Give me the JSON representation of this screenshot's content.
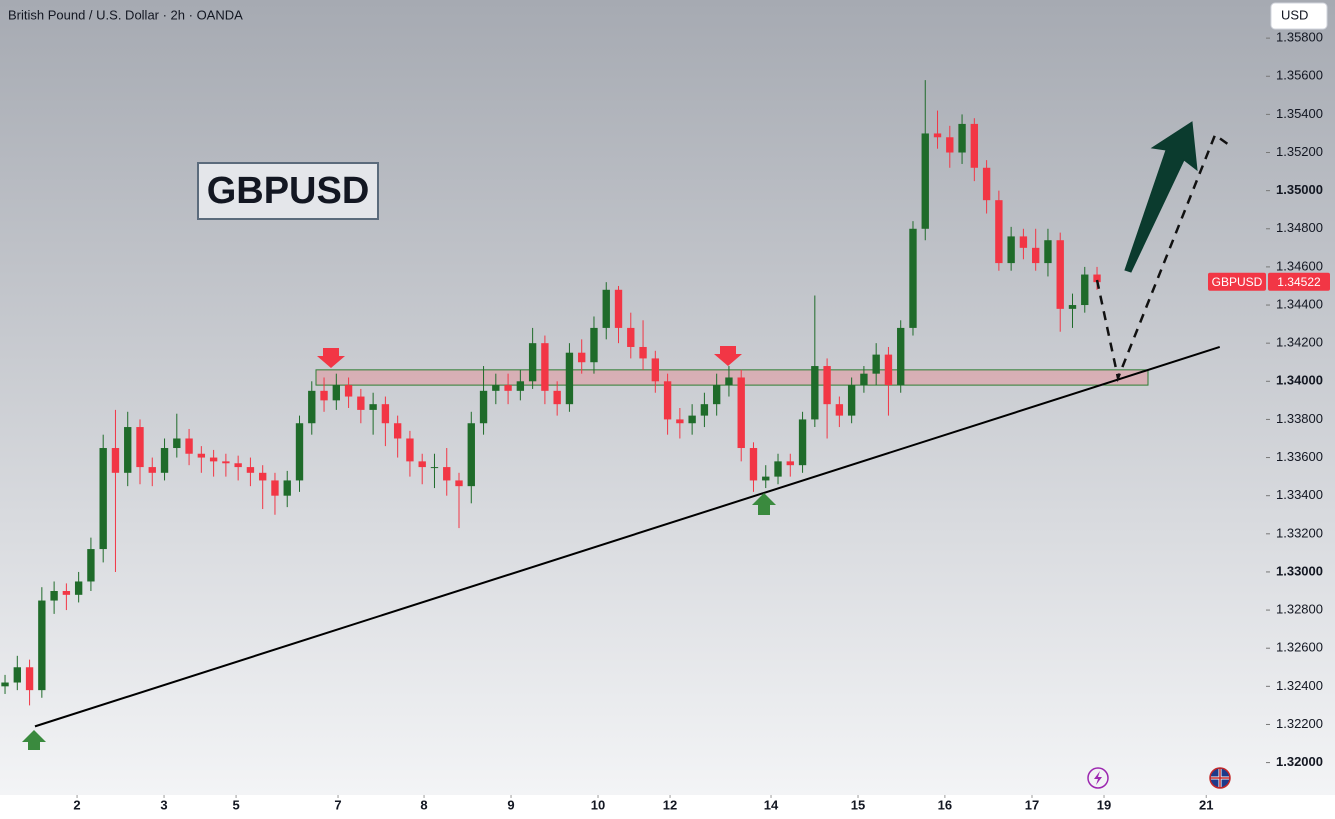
{
  "header": {
    "title": "British Pound / U.S. Dollar · 2h · OANDA",
    "currency": "USD"
  },
  "chart_data": {
    "type": "candlestick",
    "symbol_label": "GBPUSD",
    "open": [
      1.324,
      1.3242,
      1.325,
      1.3238,
      1.3285,
      1.329,
      1.3288,
      1.3295,
      1.3312,
      1.3365,
      1.3352,
      1.3376,
      1.3355,
      1.3352,
      1.3365,
      1.337,
      1.3362,
      1.336,
      1.3358,
      1.3357,
      1.3355,
      1.3352,
      1.3348,
      1.334,
      1.3348,
      1.3378,
      1.3395,
      1.339,
      1.3398,
      1.3392,
      1.3385,
      1.3388,
      1.3378,
      1.337,
      1.3358,
      1.3355,
      1.3355,
      1.3348,
      1.3345,
      1.3378,
      1.3395,
      1.3398,
      1.3395,
      1.34,
      1.342,
      1.3395,
      1.3388,
      1.3415,
      1.341,
      1.3428,
      1.3448,
      1.3428,
      1.3418,
      1.3412,
      1.34,
      1.338,
      1.3378,
      1.3382,
      1.3388,
      1.3398,
      1.3402,
      1.3365,
      1.3348,
      1.335,
      1.3358,
      1.3356,
      1.338,
      1.3408,
      1.3388,
      1.3382,
      1.3398,
      1.3404,
      1.3414,
      1.3398,
      1.3428,
      1.348,
      1.353,
      1.3528,
      1.352,
      1.3535,
      1.3512,
      1.3495,
      1.3462,
      1.3476,
      1.347,
      1.3462,
      1.3474,
      1.3438,
      1.344,
      1.3456
    ],
    "high": [
      1.3246,
      1.3256,
      1.3254,
      1.3292,
      1.3295,
      1.3294,
      1.33,
      1.3318,
      1.3372,
      1.3385,
      1.3384,
      1.338,
      1.336,
      1.337,
      1.3383,
      1.3375,
      1.3366,
      1.3364,
      1.3362,
      1.3361,
      1.336,
      1.3356,
      1.3352,
      1.3353,
      1.3382,
      1.34,
      1.3402,
      1.3404,
      1.3402,
      1.3396,
      1.3394,
      1.3392,
      1.3382,
      1.3374,
      1.3362,
      1.3362,
      1.3365,
      1.3352,
      1.3384,
      1.3408,
      1.3404,
      1.3404,
      1.3406,
      1.3428,
      1.3424,
      1.34,
      1.342,
      1.3422,
      1.3434,
      1.3452,
      1.345,
      1.3436,
      1.3432,
      1.3416,
      1.3404,
      1.3386,
      1.3388,
      1.3394,
      1.3404,
      1.3408,
      1.3406,
      1.3368,
      1.3356,
      1.3362,
      1.3362,
      1.3384,
      1.3445,
      1.3412,
      1.3392,
      1.3402,
      1.3408,
      1.342,
      1.3418,
      1.3432,
      1.3484,
      1.3558,
      1.3542,
      1.3534,
      1.354,
      1.3538,
      1.3516,
      1.35,
      1.3481,
      1.348,
      1.348,
      1.348,
      1.3478,
      1.3446,
      1.346,
      1.346
    ],
    "low": [
      1.3236,
      1.3238,
      1.323,
      1.3234,
      1.3278,
      1.328,
      1.3284,
      1.329,
      1.3305,
      1.33,
      1.3345,
      1.3346,
      1.3345,
      1.3348,
      1.336,
      1.3356,
      1.3352,
      1.335,
      1.335,
      1.3348,
      1.3345,
      1.3333,
      1.333,
      1.3334,
      1.3342,
      1.3372,
      1.3384,
      1.3385,
      1.3386,
      1.3378,
      1.3372,
      1.3366,
      1.336,
      1.335,
      1.3346,
      1.3344,
      1.334,
      1.3323,
      1.3336,
      1.3372,
      1.3388,
      1.3388,
      1.339,
      1.3396,
      1.3388,
      1.3382,
      1.3384,
      1.3404,
      1.3404,
      1.3422,
      1.342,
      1.3412,
      1.3406,
      1.3394,
      1.3372,
      1.337,
      1.3372,
      1.3376,
      1.3382,
      1.3392,
      1.3358,
      1.3342,
      1.3344,
      1.3346,
      1.335,
      1.3352,
      1.3376,
      1.337,
      1.3376,
      1.3378,
      1.3394,
      1.3398,
      1.3382,
      1.3394,
      1.3424,
      1.3474,
      1.3522,
      1.3512,
      1.3514,
      1.3505,
      1.3488,
      1.3458,
      1.3458,
      1.3464,
      1.3458,
      1.3455,
      1.3426,
      1.3428,
      1.3436,
      1.3448
    ],
    "close": [
      1.3242,
      1.325,
      1.3238,
      1.3285,
      1.329,
      1.3288,
      1.3295,
      1.3312,
      1.3365,
      1.3352,
      1.3376,
      1.3355,
      1.3352,
      1.3365,
      1.337,
      1.3362,
      1.336,
      1.3358,
      1.3357,
      1.3355,
      1.3352,
      1.3348,
      1.334,
      1.3348,
      1.3378,
      1.3395,
      1.339,
      1.3398,
      1.3392,
      1.3385,
      1.3388,
      1.3378,
      1.337,
      1.3358,
      1.3355,
      1.3355,
      1.3348,
      1.3345,
      1.3378,
      1.3395,
      1.3398,
      1.3395,
      1.34,
      1.342,
      1.3395,
      1.3388,
      1.3415,
      1.341,
      1.3428,
      1.3448,
      1.3428,
      1.3418,
      1.3412,
      1.34,
      1.338,
      1.3378,
      1.3382,
      1.3388,
      1.3398,
      1.3402,
      1.3365,
      1.3348,
      1.335,
      1.3358,
      1.3356,
      1.338,
      1.3408,
      1.3388,
      1.3382,
      1.3398,
      1.3404,
      1.3414,
      1.3398,
      1.3428,
      1.348,
      1.353,
      1.3528,
      1.352,
      1.3535,
      1.3512,
      1.3495,
      1.3462,
      1.3476,
      1.347,
      1.3462,
      1.3474,
      1.3438,
      1.344,
      1.3456,
      1.3452
    ],
    "up_color": "#1f6b2a",
    "down_color": "#f23645",
    "last_price": 1.34522,
    "zone": [
      1.3398,
      1.3406
    ],
    "trendline": {
      "x": [
        2.44,
        99.0
      ],
      "y": [
        1.3219,
        1.3418
      ]
    },
    "xlim": [
      -0.41,
      102.69
    ],
    "ylim": [
      1.3183,
      1.36
    ],
    "xticks": [
      {
        "value": 5.87,
        "label": "2"
      },
      {
        "value": 12.96,
        "label": "3"
      },
      {
        "value": 18.83,
        "label": "5"
      },
      {
        "value": 27.14,
        "label": "7"
      },
      {
        "value": 34.15,
        "label": "8"
      },
      {
        "value": 41.24,
        "label": "9"
      },
      {
        "value": 48.33,
        "label": "10"
      },
      {
        "value": 54.2,
        "label": "12"
      },
      {
        "value": 62.43,
        "label": "14"
      },
      {
        "value": 69.52,
        "label": "15"
      },
      {
        "value": 76.6,
        "label": "16"
      },
      {
        "value": 83.7,
        "label": "17"
      },
      {
        "value": 89.57,
        "label": "19"
      },
      {
        "value": 97.9,
        "label": "21"
      }
    ],
    "yticks": [
      {
        "value": 1.32,
        "label": "1.32000"
      },
      {
        "value": 1.322,
        "label": "1.32200"
      },
      {
        "value": 1.324,
        "label": "1.32400"
      },
      {
        "value": 1.326,
        "label": "1.32600"
      },
      {
        "value": 1.328,
        "label": "1.32800"
      },
      {
        "value": 1.33,
        "label": "1.33000"
      },
      {
        "value": 1.332,
        "label": "1.33200"
      },
      {
        "value": 1.334,
        "label": "1.33400"
      },
      {
        "value": 1.336,
        "label": "1.33600"
      },
      {
        "value": 1.338,
        "label": "1.33800"
      },
      {
        "value": 1.34,
        "label": "1.34000"
      },
      {
        "value": 1.342,
        "label": "1.34200"
      },
      {
        "value": 1.344,
        "label": "1.34400"
      },
      {
        "value": 1.346,
        "label": "1.34600"
      },
      {
        "value": 1.348,
        "label": "1.34800"
      },
      {
        "value": 1.35,
        "label": "1.35000"
      },
      {
        "value": 1.352,
        "label": "1.35200"
      },
      {
        "value": 1.354,
        "label": "1.35400"
      },
      {
        "value": 1.356,
        "label": "1.35600"
      },
      {
        "value": 1.358,
        "label": "1.35800"
      }
    ]
  }
}
